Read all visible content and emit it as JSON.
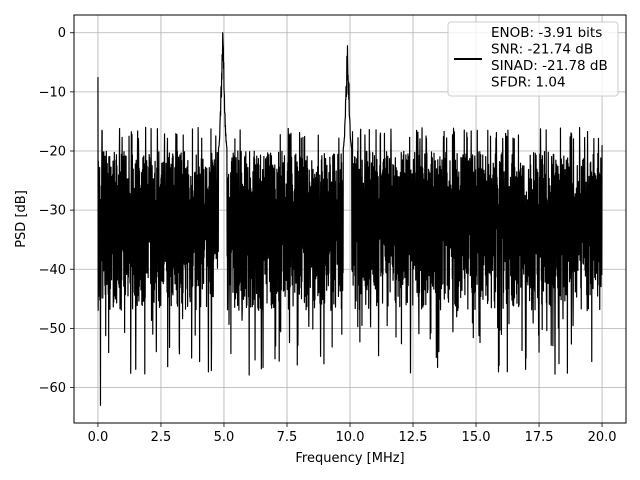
{
  "chart_data": {
    "type": "line",
    "title": "",
    "xlabel": "Frequency [MHz]",
    "ylabel": "PSD [dB]",
    "xlim": [
      -0.95,
      20.95
    ],
    "ylim": [
      -66,
      3
    ],
    "xticks": [
      0.0,
      2.5,
      5.0,
      7.5,
      10.0,
      12.5,
      15.0,
      17.5,
      20.0
    ],
    "xtick_labels": [
      "0.0",
      "2.5",
      "5.0",
      "7.5",
      "10.0",
      "12.5",
      "15.0",
      "17.5",
      "20.0"
    ],
    "yticks": [
      0,
      -10,
      -20,
      -30,
      -40,
      -50,
      -60
    ],
    "ytick_labels": [
      "0",
      "−10",
      "−20",
      "−30",
      "−40",
      "−50",
      "−60"
    ],
    "grid": true,
    "legend_position": "top-right",
    "line_color": "#000000",
    "series": [
      {
        "legend_lines": [
          "ENOB: -3.91 bits",
          "SNR: -21.74 dB",
          "SINAD: -21.78 dB",
          "SFDR: 1.04"
        ],
        "x_range": [
          0.0,
          20.0
        ],
        "noise_floor_top_db": -18,
        "noise_floor_bottom_db": -45,
        "notable_points": [
          {
            "x": 0.0,
            "y": -7.5
          },
          {
            "x": 0.1,
            "y": -63
          },
          {
            "x": 4.95,
            "y": 0.0
          },
          {
            "x": 9.9,
            "y": -2.2
          },
          {
            "x": 20.0,
            "y": -19
          }
        ]
      }
    ]
  }
}
